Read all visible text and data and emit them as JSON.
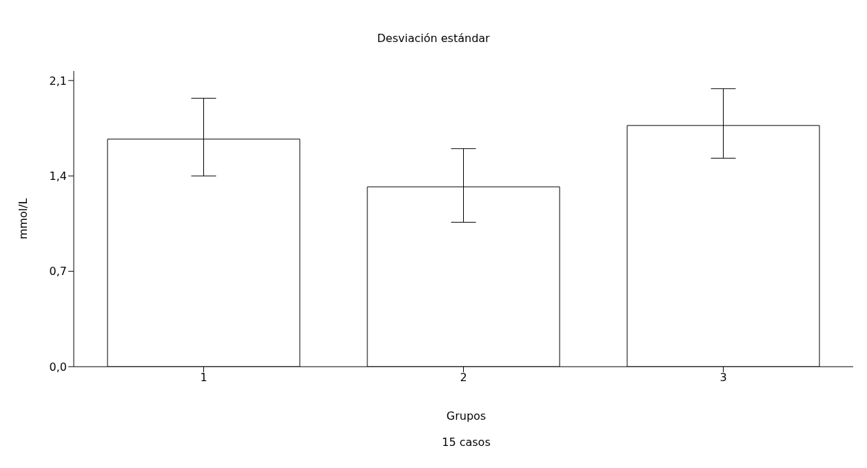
{
  "chart_data": {
    "type": "bar",
    "title": "Desviación estándar",
    "xlabel": "Grupos",
    "ylabel": "mmol/L",
    "annotations": [
      "15 casos"
    ],
    "categories": [
      "1",
      "2",
      "3"
    ],
    "values": [
      1.67,
      1.32,
      1.77
    ],
    "errors": [
      [
        1.4,
        1.97
      ],
      [
        1.06,
        1.6
      ],
      [
        1.53,
        2.04
      ]
    ],
    "color": "#ffffff",
    "ylim": [
      0,
      2.17
    ],
    "yticks": [
      {
        "value": 0,
        "label": "0,0"
      },
      {
        "value": 0.7,
        "label": "0,7"
      },
      {
        "value": 1.4,
        "label": "1,4"
      },
      {
        "value": 2.1,
        "label": "2,1"
      }
    ]
  }
}
